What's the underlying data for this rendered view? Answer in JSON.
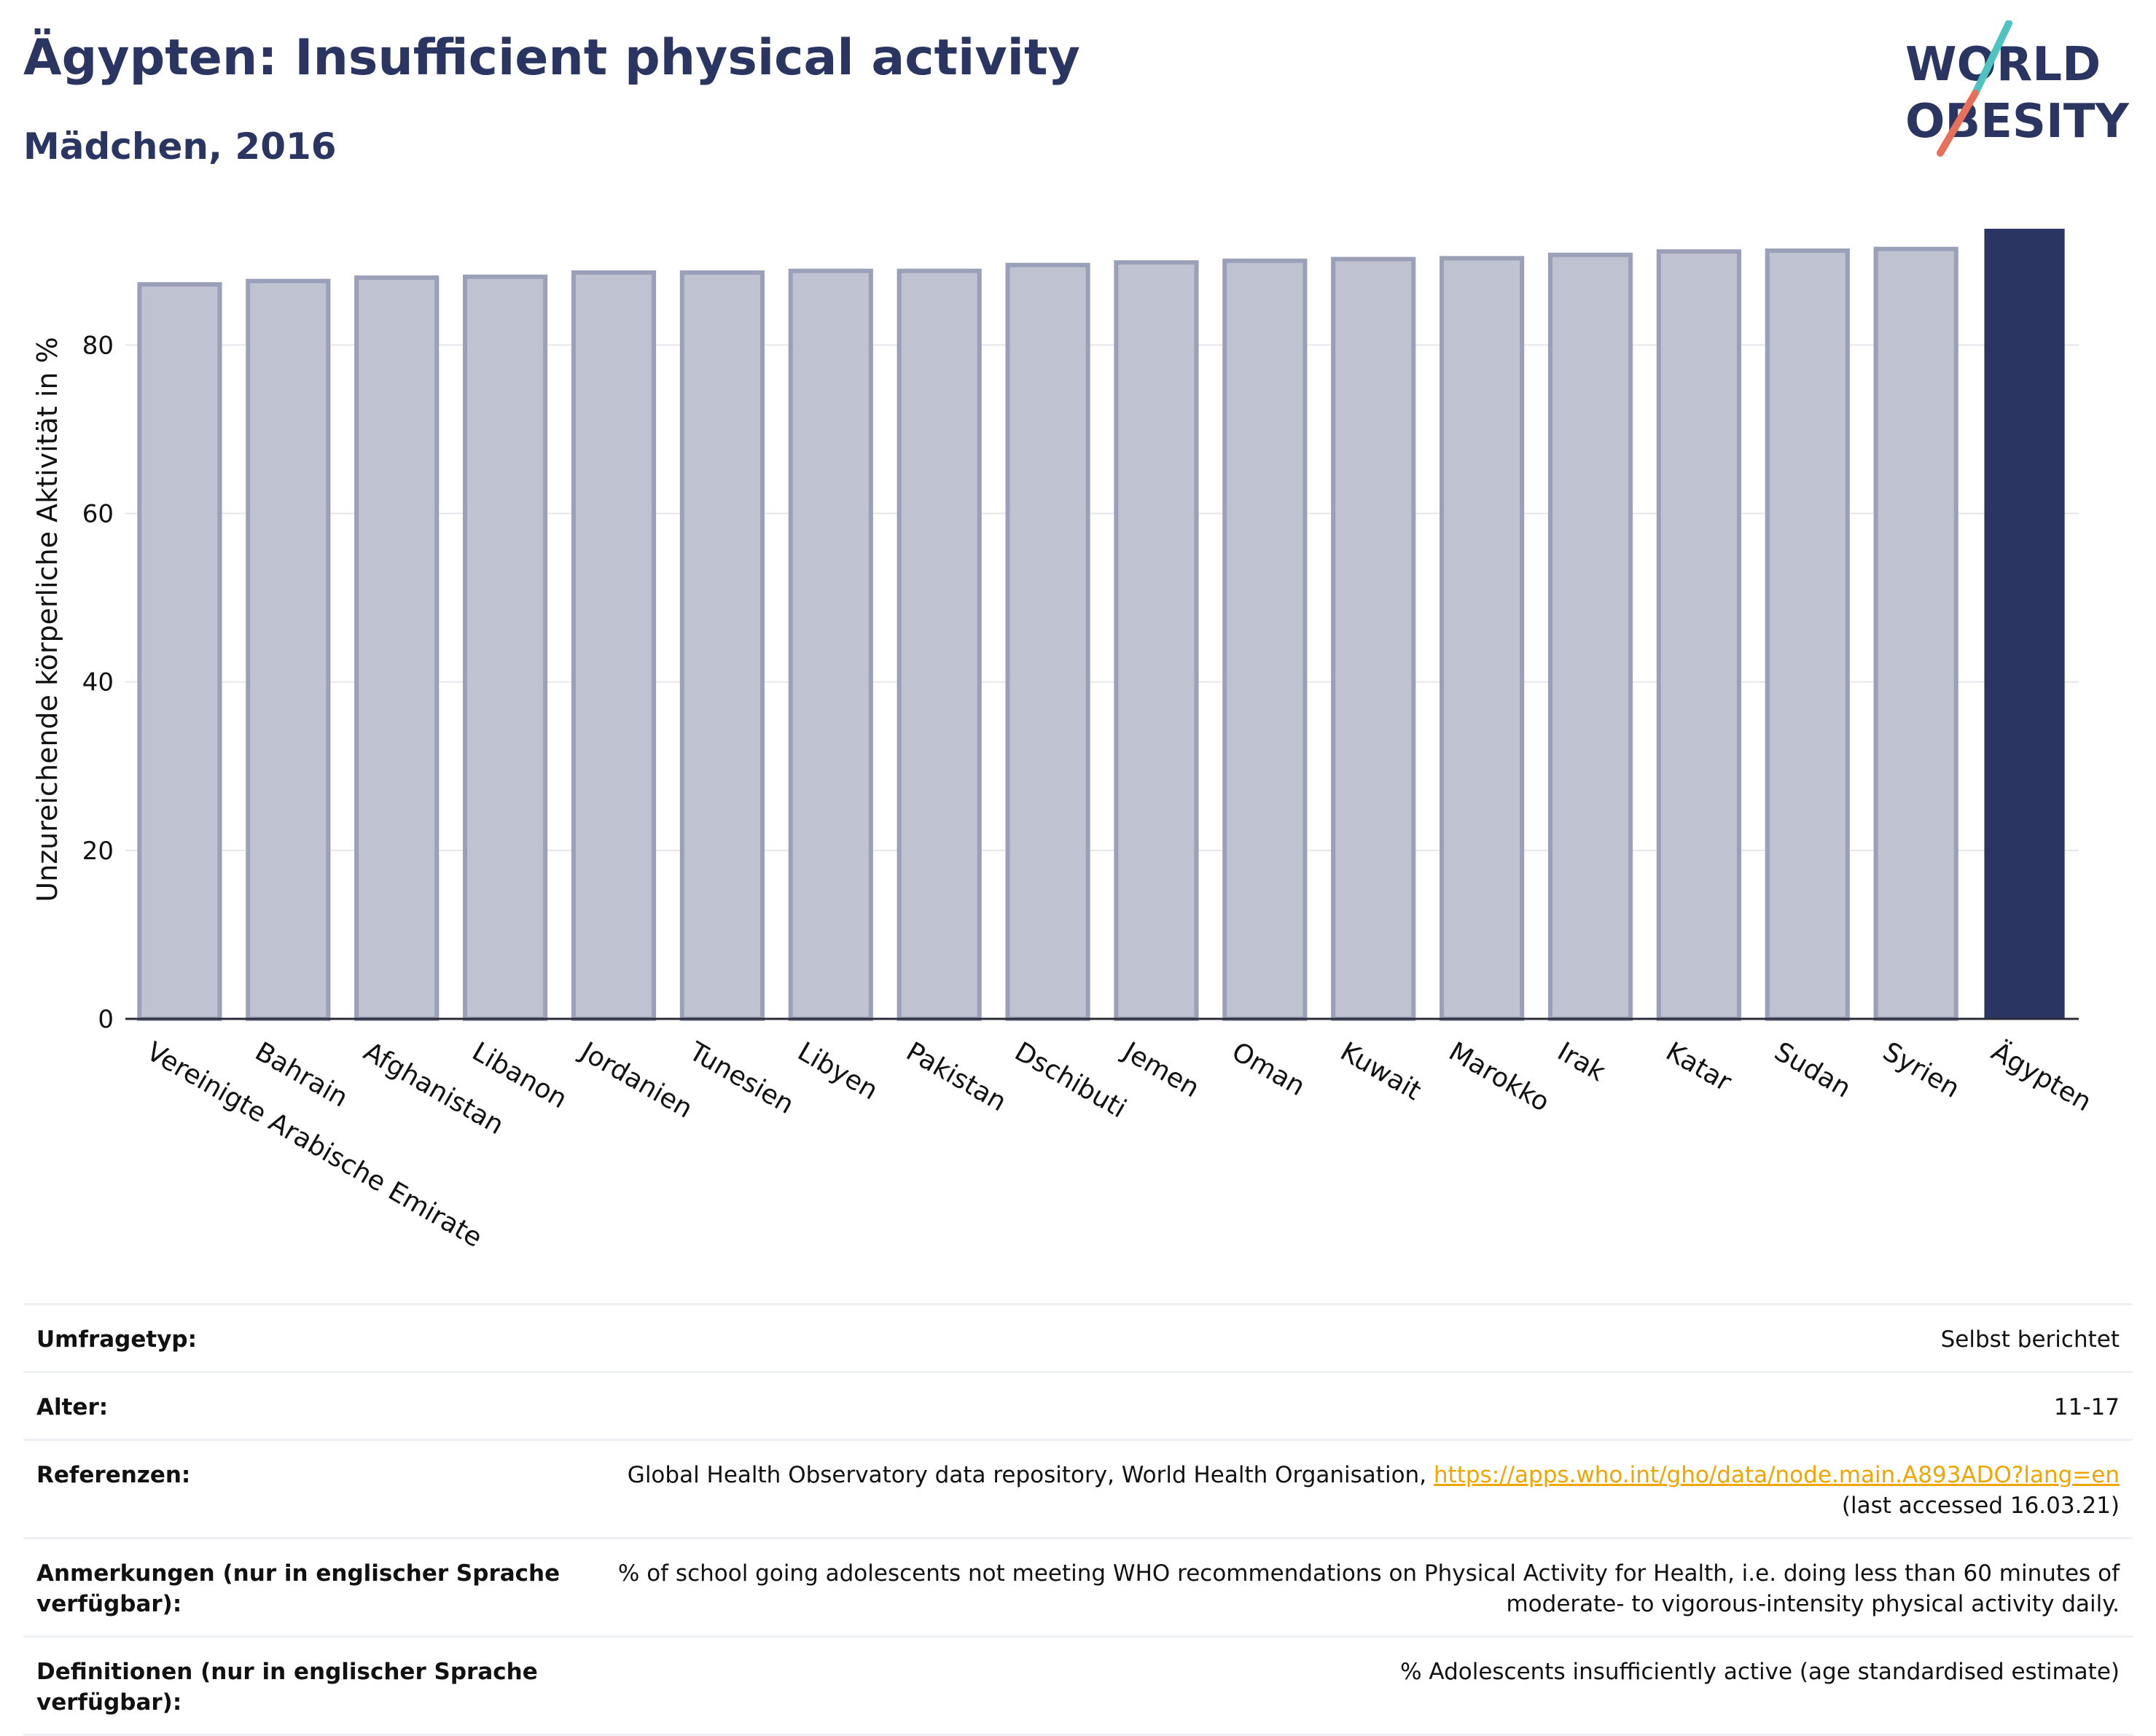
{
  "header": {
    "title": "Ägypten: Insufficient physical activity",
    "subtitle": "Mädchen, 2016"
  },
  "logo": {
    "line1": "WORLD",
    "line2": "OBESITY",
    "slash_colors": [
      "#4ec3c0",
      "#e8705a"
    ]
  },
  "chart_data": {
    "type": "bar",
    "categories": [
      "Vereinigte Arabische Emirate",
      "Bahrain",
      "Afghanistan",
      "Libanon",
      "Jordanien",
      "Tunesien",
      "Libyen",
      "Pakistan",
      "Dschibuti",
      "Jemen",
      "Oman",
      "Kuwait",
      "Marokko",
      "Irak",
      "Katar",
      "Sudan",
      "Syrien",
      "Ägypten"
    ],
    "values": [
      87.2,
      87.6,
      88.0,
      88.1,
      88.6,
      88.6,
      88.8,
      88.8,
      89.5,
      89.8,
      90.0,
      90.2,
      90.3,
      90.7,
      91.1,
      91.2,
      91.4,
      93.8
    ],
    "highlight": "Ägypten",
    "ylabel": "Unzureichende körperliche Aktivität in %",
    "yticks": [
      0,
      20,
      40,
      60,
      80
    ],
    "ylim": [
      0,
      95
    ],
    "grid": true,
    "colors": {
      "bar": "#bfc2d0",
      "bar_border": "#9aa0b8",
      "highlight": "#2b3562"
    }
  },
  "info_table": {
    "survey_label": "Umfragetyp:",
    "survey_value": "Selbst berichtet",
    "age_label": "Alter:",
    "age_value": "11-17",
    "ref_label": "Referenzen:",
    "ref_text": "Global Health Observatory data repository, World Health Organisation, ",
    "ref_link": "https://apps.who.int/gho/data/node.main.A893ADO?lang=en",
    "ref_accessed": "(last accessed 16.03.21)",
    "notes_label": "Anmerkungen (nur in englischer Sprache verfügbar):",
    "notes_value": "% of school going adolescents not meeting WHO recommendations on Physical Activity for Health, i.e. doing less than 60 minutes of moderate- to vigorous-intensity physical activity daily.",
    "def_label": "Definitionen (nur in englischer Sprache verfügbar):",
    "def_value": "% Adolescents insufficiently active (age standardised estimate)"
  }
}
